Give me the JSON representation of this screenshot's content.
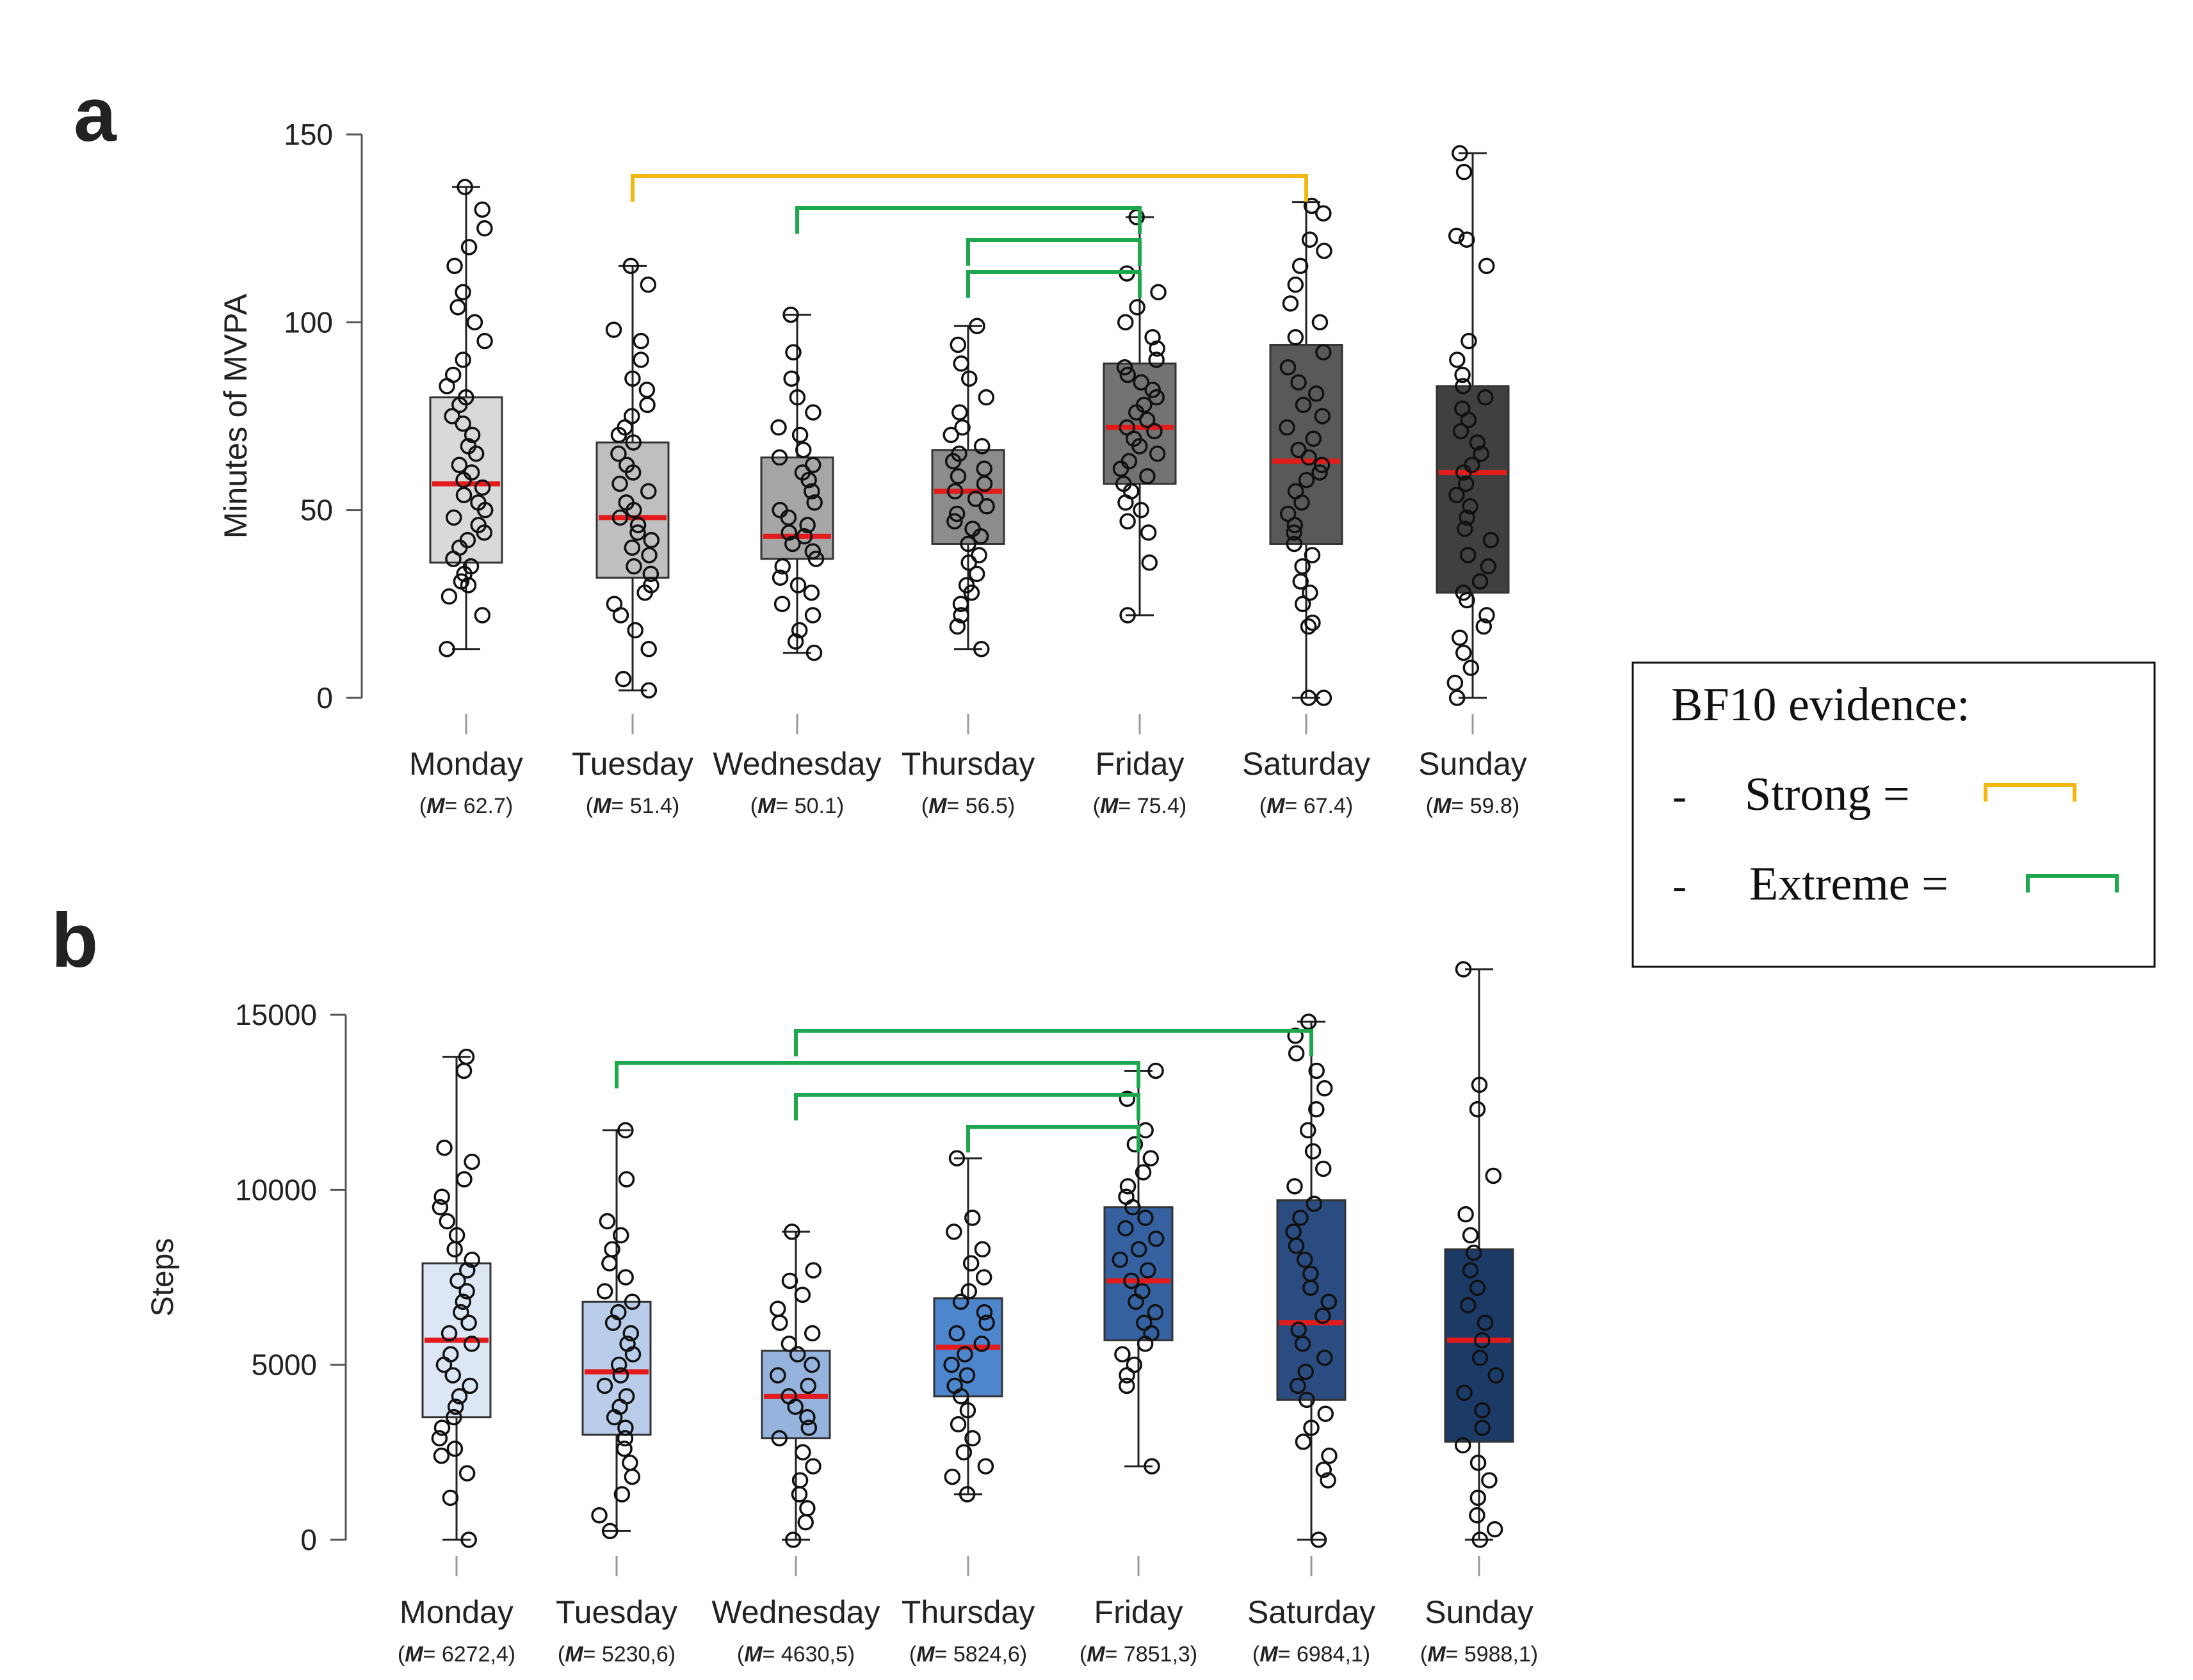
{
  "colors": {
    "median": "#e31b1b",
    "strong": "#f2b711",
    "extreme": "#1ea84e",
    "points": "#111111",
    "axis": "#555555"
  },
  "legend": {
    "title": "BF10 evidence:",
    "bullet": "-",
    "items": [
      {
        "label": "Strong =",
        "color": "#f2b711"
      },
      {
        "label": "Extreme =",
        "color": "#1ea84e"
      }
    ]
  },
  "chart_data": [
    {
      "panel_label": "a",
      "type": "box",
      "ylabel": "Minutes of MVPA",
      "ylim": [
        0,
        150
      ],
      "yticks": [
        0,
        50,
        100,
        150
      ],
      "ytick_labels": [
        "0",
        "50",
        "100",
        "150"
      ],
      "mean_prefix": "M",
      "categories": [
        "Monday",
        "Tuesday",
        "Wednesday",
        "Thursday",
        "Friday",
        "Saturday",
        "Sunday"
      ],
      "mean_labels": [
        "= 62.7",
        "= 51.4",
        "= 50.1",
        "= 56.5",
        "= 75.4",
        "= 67.4",
        "= 59.8"
      ],
      "box_colors": [
        "#d9d9d9",
        "#bfbfbf",
        "#a6a6a6",
        "#8c8c8c",
        "#737373",
        "#595959",
        "#404040"
      ],
      "boxes": [
        {
          "min": 13,
          "q1": 36,
          "median": 57,
          "q3": 80,
          "max": 136
        },
        {
          "min": 2,
          "q1": 32,
          "median": 48,
          "q3": 68,
          "max": 115
        },
        {
          "min": 12,
          "q1": 37,
          "median": 43,
          "q3": 64,
          "max": 102
        },
        {
          "min": 13,
          "q1": 41,
          "median": 55,
          "q3": 66,
          "max": 99
        },
        {
          "min": 22,
          "q1": 57,
          "median": 72,
          "q3": 89,
          "max": 128
        },
        {
          "min": 0,
          "q1": 41,
          "median": 63,
          "q3": 94,
          "max": 132
        },
        {
          "min": 0,
          "q1": 28,
          "median": 60,
          "q3": 83,
          "max": 145
        }
      ],
      "points": [
        [
          13,
          22,
          27,
          30,
          31,
          33,
          35,
          37,
          40,
          42,
          44,
          46,
          48,
          50,
          52,
          54,
          56,
          58,
          60,
          62,
          65,
          67,
          70,
          73,
          75,
          78,
          80,
          83,
          86,
          90,
          95,
          100,
          104,
          108,
          115,
          120,
          125,
          130,
          136
        ],
        [
          2,
          5,
          13,
          18,
          22,
          25,
          28,
          30,
          33,
          35,
          38,
          40,
          42,
          44,
          46,
          48,
          50,
          52,
          55,
          57,
          60,
          62,
          65,
          68,
          70,
          72,
          75,
          78,
          82,
          85,
          90,
          95,
          98,
          110,
          115
        ],
        [
          12,
          15,
          18,
          22,
          25,
          28,
          30,
          32,
          35,
          37,
          39,
          41,
          43,
          44,
          46,
          48,
          50,
          52,
          55,
          58,
          60,
          62,
          64,
          66,
          70,
          72,
          76,
          80,
          85,
          92,
          102
        ],
        [
          13,
          19,
          22,
          25,
          28,
          30,
          33,
          36,
          38,
          41,
          43,
          45,
          47,
          49,
          51,
          53,
          55,
          57,
          59,
          61,
          63,
          65,
          67,
          70,
          72,
          76,
          80,
          85,
          89,
          94,
          99
        ],
        [
          22,
          36,
          44,
          47,
          50,
          52,
          55,
          57,
          59,
          61,
          63,
          65,
          67,
          69,
          71,
          72,
          74,
          76,
          78,
          80,
          82,
          84,
          86,
          88,
          90,
          93,
          96,
          100,
          104,
          108,
          113,
          128
        ],
        [
          0,
          0,
          19,
          20,
          25,
          28,
          31,
          35,
          38,
          41,
          44,
          46,
          49,
          52,
          55,
          58,
          60,
          62,
          64,
          66,
          69,
          72,
          75,
          78,
          81,
          84,
          88,
          92,
          96,
          100,
          105,
          110,
          115,
          119,
          122,
          129,
          131
        ],
        [
          0,
          4,
          8,
          12,
          16,
          19,
          22,
          26,
          28,
          31,
          35,
          38,
          42,
          45,
          48,
          51,
          54,
          57,
          60,
          62,
          65,
          68,
          71,
          74,
          77,
          80,
          83,
          86,
          90,
          95,
          115,
          122,
          123,
          140,
          145
        ]
      ],
      "brackets": [
        {
          "from": 1,
          "to": 5,
          "level": 4,
          "evidence": "strong"
        },
        {
          "from": 2,
          "to": 4,
          "level": 3,
          "evidence": "extreme"
        },
        {
          "from": 3,
          "to": 4,
          "level": 2,
          "evidence": "extreme"
        },
        {
          "from": 4,
          "to": 3,
          "level": 1,
          "evidence": "extreme"
        }
      ]
    },
    {
      "panel_label": "b",
      "type": "box",
      "ylabel": "Steps",
      "ylim": [
        0,
        15000
      ],
      "yticks": [
        0,
        5000,
        10000,
        15000
      ],
      "ytick_labels": [
        "0",
        "5000",
        "10000",
        "15000"
      ],
      "mean_prefix": "M",
      "categories": [
        "Monday",
        "Tuesday",
        "Wednesday",
        "Thursday",
        "Friday",
        "Saturday",
        "Sunday"
      ],
      "mean_labels": [
        "= 6272,4)",
        "= 5230,6)",
        "= 4630,5)",
        "= 5824,6)",
        "= 7851,3)",
        "= 6984,1)",
        "= 5988,1)"
      ],
      "box_colors": [
        "#dce6f5",
        "#b9cdea",
        "#95b3dd",
        "#4d86cc",
        "#3561a0",
        "#2a4c80",
        "#1c3a66"
      ],
      "boxes": [
        {
          "min": 0,
          "q1": 3500,
          "median": 5700,
          "q3": 7900,
          "max": 13800
        },
        {
          "min": 250,
          "q1": 3000,
          "median": 4800,
          "q3": 6800,
          "max": 11700
        },
        {
          "min": 0,
          "q1": 2900,
          "median": 4100,
          "q3": 5400,
          "max": 8800
        },
        {
          "min": 1300,
          "q1": 4100,
          "median": 5500,
          "q3": 6900,
          "max": 10900
        },
        {
          "min": 2100,
          "q1": 5700,
          "median": 7400,
          "q3": 9500,
          "max": 13400
        },
        {
          "min": 0,
          "q1": 4000,
          "median": 6200,
          "q3": 9700,
          "max": 14800
        },
        {
          "min": 0,
          "q1": 2800,
          "median": 5700,
          "q3": 8300,
          "max": 16300
        }
      ],
      "points": [
        [
          0,
          1200,
          1900,
          2400,
          2600,
          2900,
          3200,
          3500,
          3800,
          4100,
          4400,
          4700,
          5000,
          5300,
          5600,
          5900,
          6200,
          6500,
          6800,
          7100,
          7400,
          7700,
          8000,
          8300,
          8700,
          9100,
          9500,
          9800,
          10300,
          10800,
          11200,
          13400,
          13800
        ],
        [
          250,
          700,
          1300,
          1800,
          2200,
          2600,
          2900,
          3200,
          3500,
          3800,
          4100,
          4400,
          4700,
          5000,
          5300,
          5600,
          5900,
          6200,
          6500,
          6800,
          7100,
          7500,
          7900,
          8300,
          8700,
          9100,
          10300,
          11700
        ],
        [
          0,
          500,
          900,
          1300,
          1700,
          2100,
          2500,
          2900,
          3200,
          3500,
          3800,
          4100,
          4400,
          4700,
          5000,
          5300,
          5600,
          5900,
          6200,
          6600,
          7000,
          7400,
          7700,
          8800
        ],
        [
          1300,
          1800,
          2100,
          2500,
          2900,
          3300,
          3700,
          4100,
          4400,
          4700,
          5000,
          5300,
          5600,
          5900,
          6200,
          6500,
          6800,
          7100,
          7500,
          7900,
          8300,
          8800,
          9200,
          10900
        ],
        [
          2100,
          4400,
          4700,
          5000,
          5300,
          5600,
          5900,
          6200,
          6500,
          6800,
          7100,
          7400,
          7700,
          8000,
          8300,
          8600,
          8900,
          9200,
          9500,
          9800,
          10100,
          10500,
          10900,
          11300,
          11700,
          12600,
          13400
        ],
        [
          0,
          1700,
          2000,
          2400,
          2800,
          3200,
          3600,
          4000,
          4400,
          4800,
          5200,
          5600,
          6000,
          6400,
          6800,
          7200,
          7600,
          8000,
          8400,
          8800,
          9200,
          9600,
          10100,
          10600,
          11100,
          11700,
          12300,
          12900,
          13400,
          13900,
          14400,
          14800
        ],
        [
          0,
          300,
          700,
          1200,
          1700,
          2200,
          2700,
          3200,
          3700,
          4200,
          4700,
          5200,
          5700,
          6200,
          6700,
          7200,
          7700,
          8200,
          8700,
          9300,
          10400,
          12300,
          13000,
          16300
        ]
      ],
      "brackets": [
        {
          "from": 2,
          "to": 5,
          "level": 4,
          "evidence": "extreme"
        },
        {
          "from": 1,
          "to": 4,
          "level": 3,
          "evidence": "extreme"
        },
        {
          "from": 2,
          "to": 4,
          "level": 2,
          "evidence": "extreme"
        },
        {
          "from": 3,
          "to": 4,
          "level": 1,
          "evidence": "extreme"
        }
      ]
    }
  ]
}
